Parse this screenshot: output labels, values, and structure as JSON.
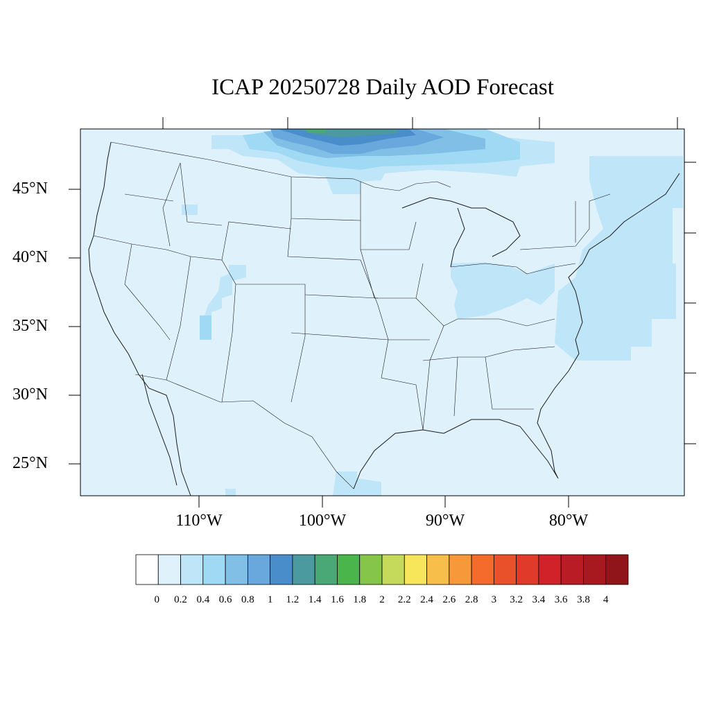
{
  "title": "ICAP 20250728 Daily AOD Forecast",
  "lat_labels": [
    "45°N",
    "40°N",
    "35°N",
    "30°N",
    "25°N"
  ],
  "lon_labels": [
    "110°W",
    "100°W",
    "90°W",
    "80°W"
  ],
  "colorbar": {
    "labels": [
      "0",
      "0.2",
      "0.4",
      "0.6",
      "0.8",
      "1",
      "1.2",
      "1.4",
      "1.6",
      "1.8",
      "2",
      "2.2",
      "2.4",
      "2.6",
      "2.8",
      "3",
      "3.2",
      "3.4",
      "3.6",
      "3.8",
      "4"
    ],
    "colors": [
      "#ffffff",
      "#dff2fb",
      "#bfe6f8",
      "#a0d9f4",
      "#82bfe6",
      "#68a8dc",
      "#4a8dcb",
      "#4a9aa0",
      "#4aa877",
      "#4ab54a",
      "#84c54a",
      "#c5d95a",
      "#f7e65a",
      "#f7be4a",
      "#f7993a",
      "#f46b2b",
      "#e8512a",
      "#e03a2a",
      "#d12229",
      "#b91c24",
      "#a8191f",
      "#8f151a"
    ]
  },
  "map": {
    "background_color": "#dff2fb",
    "aod_regions": [
      {
        "level": 2,
        "area": "Canada near Great Lakes / Ontario"
      },
      {
        "level": 3,
        "area": "Lake Superior north shore"
      },
      {
        "level": 5,
        "area": "northwest Ontario"
      },
      {
        "level": 6,
        "area": "northwest Ontario core"
      },
      {
        "level": 7,
        "area": "northwest Ontario peak"
      },
      {
        "level": 2,
        "area": "Atlantic coast Mid-Atlantic to Northeast"
      },
      {
        "level": 2,
        "area": "Ohio Valley"
      },
      {
        "level": 3,
        "area": "Utah / Arizona"
      }
    ]
  }
}
